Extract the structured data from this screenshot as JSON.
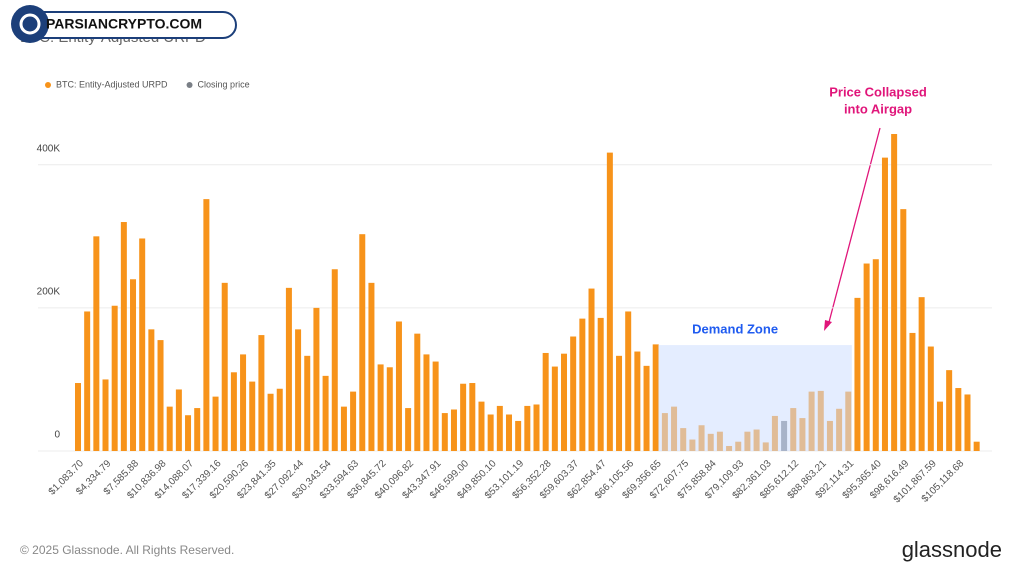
{
  "watermark": "PARSIANCRYPTO.COM",
  "footer": {
    "copyright": "© 2025 Glassnode. All Rights Reserved.",
    "brand": "glassnode"
  },
  "chart_data": {
    "type": "bar",
    "title": "BTC: Entity-Adjusted URPD",
    "categories": [
      "$1,083.70",
      null,
      null,
      "$4,334.79",
      null,
      null,
      "$7,585.88",
      null,
      null,
      "$10,836.98",
      null,
      null,
      "$14,088.07",
      null,
      null,
      "$17,339.16",
      null,
      null,
      "$20,590.26",
      null,
      null,
      "$23,841.35",
      null,
      null,
      "$27,092.44",
      null,
      null,
      "$30,343.54",
      null,
      null,
      "$33,594.63",
      null,
      null,
      "$36,845.72",
      null,
      null,
      "$40,096.82",
      null,
      null,
      "$43,347.91",
      null,
      null,
      "$46,599.00",
      null,
      null,
      "$49,850.10",
      null,
      null,
      "$53,101.19",
      null,
      null,
      "$56,352.28",
      null,
      null,
      "$59,603.37",
      null,
      null,
      "$62,854.47",
      null,
      null,
      "$66,105.56",
      null,
      null,
      "$69,356.65",
      null,
      null,
      "$72,607.75",
      null,
      null,
      "$75,858.84",
      null,
      null,
      "$79,109.93",
      null,
      null,
      "$82,361.03",
      null,
      null,
      "$85,612.12",
      null,
      null,
      "$88,863.21",
      null,
      null,
      "$92,114.31",
      null,
      null,
      "$95,365.40",
      null,
      null,
      "$98,616.49",
      null,
      null,
      "$101,867.59",
      null,
      null,
      "$105,118.68",
      null,
      null
    ],
    "series": [
      {
        "name": "BTC: Entity-Adjusted URPD",
        "color": "#f7931a",
        "values": [
          95000,
          195000,
          300000,
          100000,
          203000,
          320000,
          240000,
          297000,
          170000,
          155000,
          62000,
          86000,
          50000,
          60000,
          352000,
          76000,
          235000,
          110000,
          135000,
          97000,
          162000,
          80000,
          87000,
          228000,
          170000,
          133000,
          200000,
          105000,
          254000,
          62000,
          83000,
          303000,
          235000,
          121000,
          117000,
          181000,
          60000,
          164000,
          135000,
          125000,
          53000,
          58000,
          94000,
          95000,
          69000,
          51000,
          63000,
          51000,
          42000,
          63000,
          65000,
          137000,
          118000,
          136000,
          160000,
          185000,
          227000,
          186000,
          417000,
          133000,
          195000,
          139000,
          119000,
          149000,
          53000,
          62000,
          32000,
          16000,
          36000,
          24000,
          27000,
          7000,
          13000,
          27000,
          30000,
          12000,
          49000,
          null,
          60000,
          46000,
          83000,
          84000,
          42000,
          59000,
          83000,
          214000,
          262000,
          268000,
          410000,
          443000,
          338000,
          165000,
          215000,
          146000,
          69000,
          113000,
          88000,
          79000,
          13000
        ]
      },
      {
        "name": "Closing price",
        "color": "#7a7f86",
        "values": [
          null,
          null,
          null,
          null,
          null,
          null,
          null,
          null,
          null,
          null,
          null,
          null,
          null,
          null,
          null,
          null,
          null,
          null,
          null,
          null,
          null,
          null,
          null,
          null,
          null,
          null,
          null,
          null,
          null,
          null,
          null,
          null,
          null,
          null,
          null,
          null,
          null,
          null,
          null,
          null,
          null,
          null,
          null,
          null,
          null,
          null,
          null,
          null,
          null,
          null,
          null,
          null,
          null,
          null,
          null,
          null,
          null,
          null,
          null,
          null,
          null,
          null,
          null,
          null,
          null,
          null,
          null,
          null,
          null,
          null,
          null,
          null,
          null,
          null,
          null,
          null,
          null,
          42000,
          null,
          null,
          null,
          null,
          null,
          null,
          null,
          null,
          null,
          null,
          null,
          null,
          null,
          null,
          null,
          null,
          null,
          null,
          null,
          null,
          null
        ]
      }
    ],
    "ylim": [
      0,
      450000
    ],
    "yticks": [
      0,
      {
        "value": 200000,
        "label": "200K"
      },
      {
        "value": 400000,
        "label": "400K"
      }
    ],
    "grid": true,
    "demand_zone": {
      "label": "Demand Zone",
      "from": 64,
      "to": 84,
      "top": 148000
    },
    "annotation": [
      "Price Collapsed",
      "into Airgap"
    ]
  }
}
